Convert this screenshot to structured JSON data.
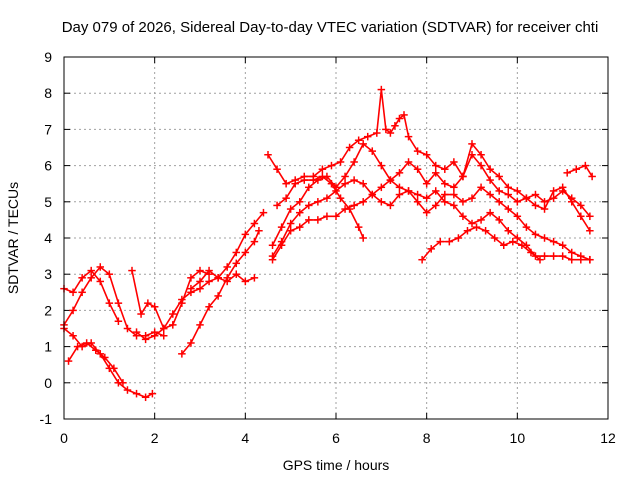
{
  "chart_data": {
    "type": "scatter",
    "title": "Day 079 of 2026, Sidereal Day-to-day VTEC variation (SDTVAR) for receiver chti",
    "xlabel": "GPS time / hours",
    "ylabel": "SDTVAR / TECUs",
    "xlim": [
      0,
      12
    ],
    "ylim": [
      -1,
      9
    ],
    "x_ticks": [
      0,
      2,
      4,
      6,
      8,
      10,
      12
    ],
    "y_ticks": [
      -1,
      0,
      1,
      2,
      3,
      4,
      5,
      6,
      7,
      8,
      9
    ],
    "grid": true,
    "marker": "+",
    "color": "#ff0000",
    "series": [
      {
        "name": "s1",
        "x": [
          0.0,
          0.2,
          0.4,
          0.6,
          0.8,
          1.0,
          1.2,
          1.4,
          1.6,
          1.8,
          2.0,
          2.2
        ],
        "y": [
          1.6,
          2.0,
          2.5,
          2.9,
          3.2,
          3.0,
          2.2,
          1.5,
          1.3,
          1.3,
          1.4,
          1.3
        ]
      },
      {
        "name": "s2",
        "x": [
          0.0,
          0.2,
          0.4,
          0.6,
          0.8,
          1.0,
          1.2,
          1.4,
          1.6,
          1.8,
          1.95
        ],
        "y": [
          1.5,
          1.3,
          1.0,
          1.1,
          0.8,
          0.4,
          0.0,
          -0.2,
          -0.3,
          -0.4,
          -0.3
        ]
      },
      {
        "name": "s3",
        "x": [
          0.1,
          0.3,
          0.5,
          0.7,
          0.9,
          1.1,
          1.3
        ],
        "y": [
          0.6,
          1.0,
          1.1,
          0.9,
          0.7,
          0.4,
          0.0
        ]
      },
      {
        "name": "s4",
        "x": [
          0.0,
          0.2,
          0.4,
          0.6,
          0.8,
          1.0,
          1.2
        ],
        "y": [
          2.6,
          2.5,
          2.9,
          3.1,
          2.8,
          2.2,
          1.7
        ]
      },
      {
        "name": "s5",
        "x": [
          1.5,
          1.7,
          1.85,
          2.0,
          2.2,
          2.4,
          2.6,
          2.8,
          3.0,
          3.2
        ],
        "y": [
          3.1,
          1.9,
          2.2,
          2.1,
          1.5,
          1.6,
          2.2,
          2.9,
          3.1,
          3.0
        ]
      },
      {
        "name": "s6",
        "x": [
          1.6,
          1.8,
          2.0,
          2.2,
          2.4,
          2.6,
          2.8,
          3.0,
          3.2,
          3.4,
          3.6,
          3.8,
          4.0,
          4.2,
          4.4
        ],
        "y": [
          1.4,
          1.2,
          1.3,
          1.5,
          1.9,
          2.3,
          2.5,
          2.6,
          2.8,
          2.9,
          3.2,
          3.6,
          4.1,
          4.4,
          4.7
        ]
      },
      {
        "name": "s7",
        "x": [
          2.6,
          2.8,
          3.0,
          3.2,
          3.4,
          3.6,
          3.8,
          4.0,
          4.2,
          4.3
        ],
        "y": [
          0.8,
          1.1,
          1.6,
          2.1,
          2.4,
          2.9,
          3.3,
          3.6,
          3.9,
          4.2
        ]
      },
      {
        "name": "s8",
        "x": [
          2.8,
          3.0,
          3.2,
          3.4,
          3.6,
          3.8,
          4.0,
          4.2
        ],
        "y": [
          2.6,
          2.8,
          3.1,
          2.9,
          2.8,
          3.0,
          2.8,
          2.9
        ]
      },
      {
        "name": "s9",
        "x": [
          4.5,
          4.7,
          4.9,
          5.1,
          5.3,
          5.5,
          5.7,
          5.9,
          6.1,
          6.3,
          6.5,
          6.7,
          6.9,
          7.0,
          7.1,
          7.2,
          7.3,
          7.4,
          7.5,
          7.6,
          7.8,
          8.0,
          8.2,
          8.4,
          8.6,
          8.8,
          9.0,
          9.2,
          9.4,
          9.6,
          9.8,
          10.0,
          10.2,
          10.4,
          10.6,
          10.8,
          11.0,
          11.2,
          11.4,
          11.6
        ],
        "y": [
          6.3,
          5.9,
          5.5,
          5.6,
          5.7,
          5.7,
          5.9,
          6.0,
          6.1,
          6.5,
          6.7,
          6.8,
          6.9,
          8.1,
          7.0,
          6.9,
          7.1,
          7.3,
          7.4,
          6.8,
          6.4,
          6.3,
          6.0,
          5.9,
          6.1,
          5.7,
          6.6,
          6.3,
          5.9,
          5.7,
          5.4,
          5.3,
          5.1,
          5.2,
          5.0,
          5.1,
          5.3,
          5.1,
          4.9,
          4.6
        ]
      },
      {
        "name": "s10",
        "x": [
          4.6,
          4.8,
          5.0,
          5.2,
          5.4,
          5.6,
          5.8,
          6.0,
          6.2,
          6.4,
          6.6,
          6.8,
          7.0,
          7.2,
          7.4,
          7.6,
          7.8,
          8.0,
          8.2,
          8.4,
          8.6,
          8.8,
          9.0,
          9.2,
          9.4,
          9.6,
          9.8,
          10.0,
          10.2,
          10.4,
          10.6,
          10.8,
          11.0,
          11.2,
          11.4,
          11.6
        ],
        "y": [
          3.8,
          4.3,
          4.8,
          5.0,
          5.4,
          5.6,
          5.7,
          5.4,
          5.7,
          6.1,
          6.6,
          6.4,
          6.0,
          5.6,
          5.8,
          6.1,
          5.9,
          5.5,
          5.8,
          5.5,
          5.4,
          5.7,
          6.3,
          6.0,
          5.6,
          5.3,
          5.2,
          5.0,
          5.1,
          4.9,
          4.8,
          5.3,
          5.4,
          5.0,
          4.6,
          4.2
        ]
      },
      {
        "name": "s11",
        "x": [
          4.6,
          4.8,
          5.0,
          5.2,
          5.4,
          5.6,
          5.8,
          6.0,
          6.2,
          6.4,
          6.6,
          6.8,
          7.0,
          7.2,
          7.4,
          7.6,
          7.8,
          8.0,
          8.2,
          8.4,
          8.6,
          8.8,
          9.0,
          9.2,
          9.4,
          9.6,
          9.8,
          10.0,
          10.2,
          10.4,
          10.6,
          10.8,
          11.0,
          11.2,
          11.4,
          11.6
        ],
        "y": [
          3.5,
          3.9,
          4.4,
          4.7,
          4.9,
          5.0,
          5.1,
          5.3,
          5.5,
          5.6,
          5.5,
          5.2,
          5.0,
          4.9,
          5.2,
          5.3,
          5.0,
          4.7,
          4.9,
          5.2,
          5.2,
          5.0,
          5.1,
          5.4,
          5.2,
          5.0,
          4.8,
          4.6,
          4.3,
          4.1,
          4.0,
          3.9,
          3.8,
          3.6,
          3.5,
          3.4
        ]
      },
      {
        "name": "s12",
        "x": [
          4.6,
          4.8,
          5.0,
          5.2,
          5.4,
          5.6,
          5.8,
          6.0,
          6.2,
          6.4,
          6.6,
          6.8,
          7.0,
          7.2,
          7.4,
          7.6,
          7.8,
          8.0,
          8.2,
          8.4,
          8.6,
          8.8,
          9.0,
          9.2,
          9.4,
          9.6,
          9.8,
          10.0,
          10.2,
          10.4,
          10.6,
          10.8,
          11.0,
          11.2,
          11.4,
          11.6
        ],
        "y": [
          3.4,
          3.8,
          4.2,
          4.3,
          4.5,
          4.5,
          4.6,
          4.6,
          4.8,
          4.9,
          5.0,
          5.2,
          5.4,
          5.6,
          5.4,
          5.3,
          5.2,
          5.1,
          5.3,
          5.0,
          4.9,
          4.6,
          4.4,
          4.5,
          4.7,
          4.5,
          4.2,
          4.0,
          3.8,
          3.5,
          3.5,
          3.5,
          3.5,
          3.4,
          3.4,
          3.4
        ]
      },
      {
        "name": "s13",
        "x": [
          4.7,
          4.9,
          5.1,
          5.3,
          5.5,
          5.7,
          5.9,
          6.1,
          6.3,
          6.5,
          6.6
        ],
        "y": [
          4.9,
          5.1,
          5.5,
          5.6,
          5.6,
          5.7,
          5.5,
          5.1,
          4.8,
          4.3,
          4.0
        ]
      },
      {
        "name": "s14",
        "x": [
          7.9,
          8.1,
          8.3,
          8.5,
          8.7,
          8.9,
          9.1,
          9.3,
          9.5,
          9.7,
          9.9,
          10.1,
          10.3,
          10.5
        ],
        "y": [
          3.4,
          3.7,
          3.9,
          3.9,
          4.0,
          4.2,
          4.3,
          4.2,
          4.0,
          3.8,
          3.9,
          3.8,
          3.6,
          3.4
        ]
      },
      {
        "name": "s15",
        "x": [
          11.1,
          11.3,
          11.5,
          11.65
        ],
        "y": [
          5.8,
          5.9,
          6.0,
          5.7
        ]
      }
    ]
  }
}
